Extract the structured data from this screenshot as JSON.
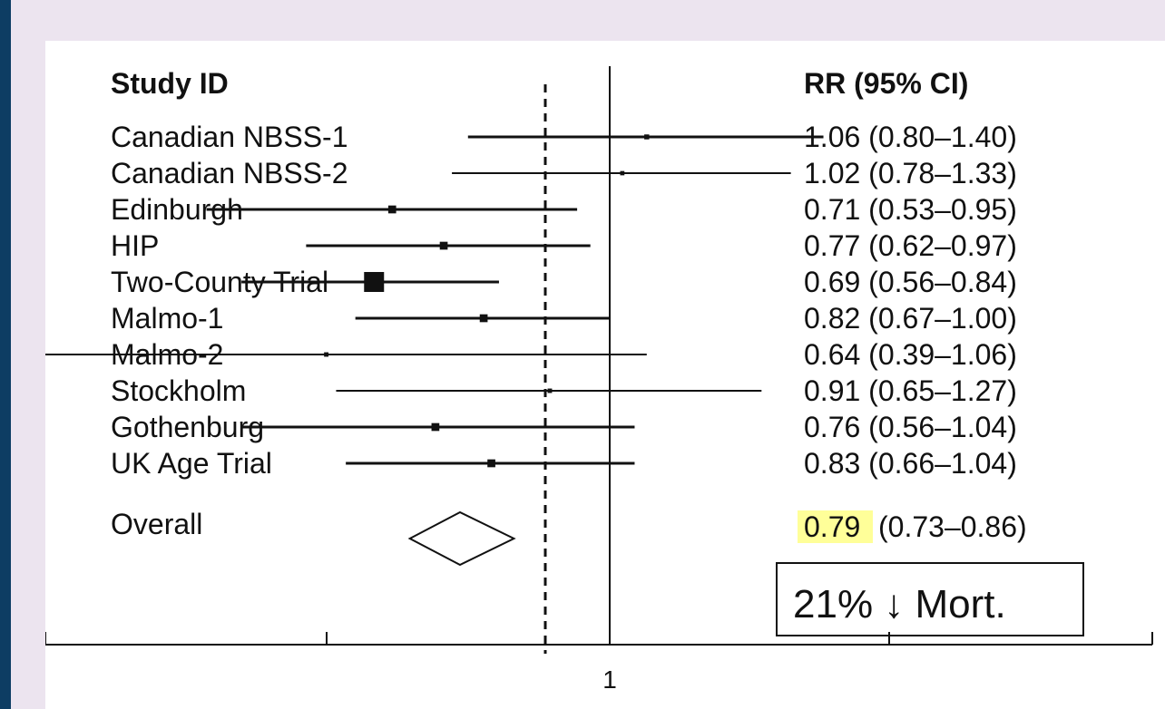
{
  "chart_data": {
    "type": "forest",
    "columns": {
      "study": "Study ID",
      "effect": "RR (95% CI)"
    },
    "reference_line": 1,
    "x_tick_labels": [
      "1"
    ],
    "studies": [
      {
        "name": "Canadian NBSS-1",
        "rr": 1.06,
        "lower": 0.8,
        "upper": 1.4,
        "text": "1.06 (0.80–1.40)",
        "weight": 0.08
      },
      {
        "name": "Canadian NBSS-2",
        "rr": 1.02,
        "lower": 0.78,
        "upper": 1.33,
        "text": "1.02 (0.78–1.33)",
        "weight": 0.04
      },
      {
        "name": "Edinburgh",
        "rr": 0.71,
        "lower": 0.53,
        "upper": 0.95,
        "text": "0.71 (0.53–0.95)",
        "weight": 0.26
      },
      {
        "name": "HIP",
        "rr": 0.77,
        "lower": 0.62,
        "upper": 0.97,
        "text": "0.77 (0.62–0.97)",
        "weight": 0.26
      },
      {
        "name": "Two-County Trial",
        "rr": 0.69,
        "lower": 0.56,
        "upper": 0.84,
        "text": "0.69 (0.56–0.84)",
        "weight": 1.0
      },
      {
        "name": "Malmo-1",
        "rr": 0.82,
        "lower": 0.67,
        "upper": 1.0,
        "text": "0.82 (0.67–1.00)",
        "weight": 0.26
      },
      {
        "name": "Malmo-2",
        "rr": 0.64,
        "lower": 0.39,
        "upper": 1.06,
        "text": "0.64 (0.39–1.06)",
        "weight": 0.05
      },
      {
        "name": "Stockholm",
        "rr": 0.91,
        "lower": 0.65,
        "upper": 1.27,
        "text": "0.91 (0.65–1.27)",
        "weight": 0.05
      },
      {
        "name": "Gothenburg",
        "rr": 0.76,
        "lower": 0.56,
        "upper": 1.04,
        "text": "0.76 (0.56–1.04)",
        "weight": 0.26
      },
      {
        "name": "UK Age Trial",
        "rr": 0.83,
        "lower": 0.66,
        "upper": 1.04,
        "text": "0.83 (0.66–1.04)",
        "weight": 0.26
      }
    ],
    "overall": {
      "name": "Overall",
      "rr": 0.79,
      "lower": 0.73,
      "upper": 0.86,
      "rr_text": "0.79",
      "ci_text": "(0.73–0.86)"
    },
    "annotation": "21% ↓ Mort.",
    "colors": {
      "highlight": "#ffff99",
      "frame": "#0d3d63",
      "background": "#ece4ef"
    }
  }
}
